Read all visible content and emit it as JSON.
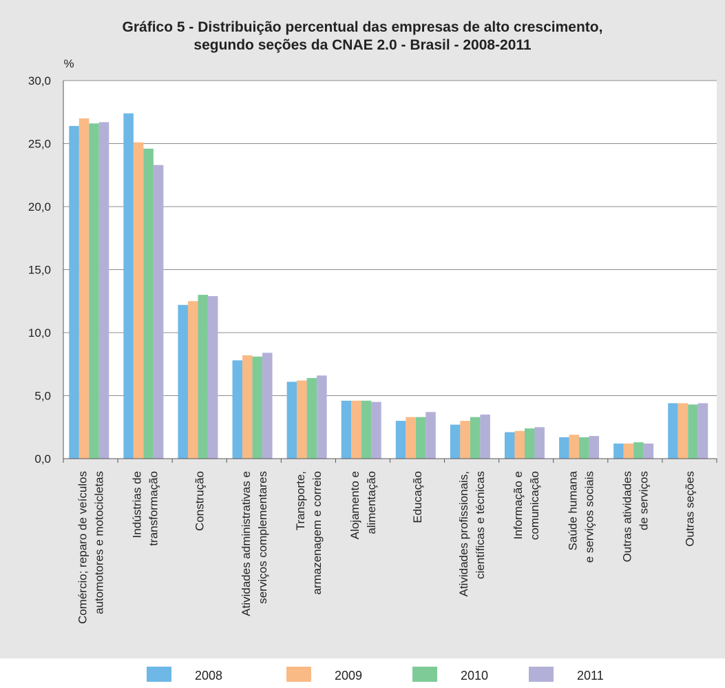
{
  "chart_data": {
    "type": "bar",
    "title": "Gráfico 5 - Distribuição percentual das empresas de alto crescimento,",
    "subtitle": "segundo seções da CNAE 2.0 - Brasil - 2008-2011",
    "ylabel": "%",
    "xlabel": "",
    "ylim": [
      0,
      30
    ],
    "yticks": [
      "0,0",
      "5,0",
      "10,0",
      "15,0",
      "20,0",
      "25,0",
      "30,0"
    ],
    "grid": true,
    "legend_position": "bottom",
    "categories": [
      [
        "Comércio; reparo de veículos",
        "automotores e motocicletas"
      ],
      [
        "Indústrias de",
        "transformação"
      ],
      [
        "Construção"
      ],
      [
        "Atividades administrativas e",
        "serviços complementares"
      ],
      [
        "Transporte,",
        "armazenagem e correio"
      ],
      [
        "Alojamento e",
        "alimentação"
      ],
      [
        "Educação"
      ],
      [
        "Atividades profissionais,",
        "científicas e técnicas"
      ],
      [
        "Informação e",
        "comunicação"
      ],
      [
        "Saúde humana",
        "e serviços sociais"
      ],
      [
        "Outras atividades",
        "de serviços"
      ],
      [
        "Outras seções"
      ]
    ],
    "series": [
      {
        "name": "2008",
        "color": "#6db8e6",
        "values": [
          26.4,
          27.4,
          12.2,
          7.8,
          6.1,
          4.6,
          3.0,
          2.7,
          2.1,
          1.7,
          1.2,
          4.4
        ]
      },
      {
        "name": "2009",
        "color": "#f9ba86",
        "values": [
          27.0,
          25.1,
          12.5,
          8.2,
          6.2,
          4.6,
          3.3,
          3.0,
          2.2,
          1.9,
          1.2,
          4.4
        ]
      },
      {
        "name": "2010",
        "color": "#7ecb98",
        "values": [
          26.6,
          24.6,
          13.0,
          8.1,
          6.4,
          4.6,
          3.3,
          3.3,
          2.4,
          1.7,
          1.3,
          4.3
        ]
      },
      {
        "name": "2011",
        "color": "#b3b0d8",
        "values": [
          26.7,
          23.3,
          12.9,
          8.4,
          6.6,
          4.5,
          3.7,
          3.5,
          2.5,
          1.8,
          1.2,
          4.4
        ]
      }
    ]
  }
}
